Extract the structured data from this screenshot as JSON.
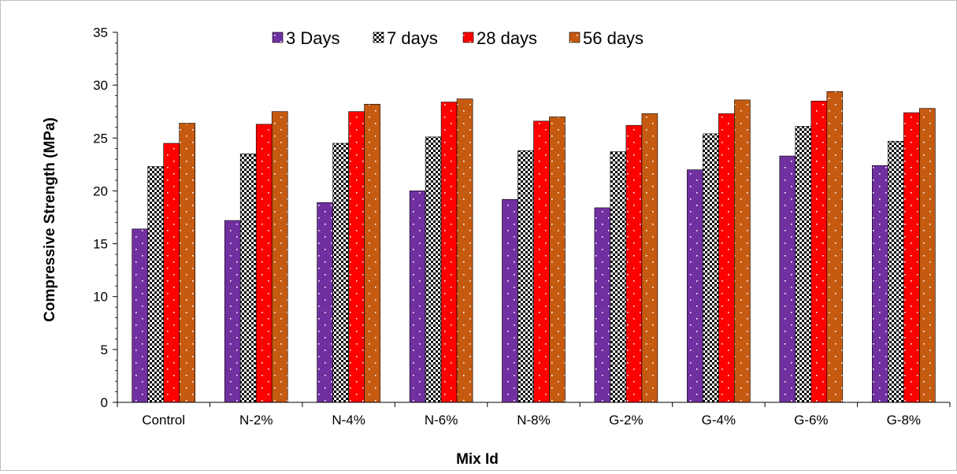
{
  "chart_data": {
    "type": "bar",
    "title": "",
    "xlabel": "Mix Id",
    "ylabel": "Compressive Strength (MPa)",
    "ylim": [
      0,
      35
    ],
    "ytick_step": 5,
    "grid": false,
    "legend_position": "top",
    "categories": [
      "Control",
      "N-2%",
      "N-4%",
      "N-6%",
      "N-8%",
      "G-2%",
      "G-4%",
      "G-6%",
      "G-8%"
    ],
    "series": [
      {
        "name": "3 Days",
        "color": "#7030a0",
        "pattern": "white-dots",
        "values": [
          16.4,
          17.2,
          18.9,
          20.0,
          19.2,
          18.4,
          22.0,
          23.3,
          22.4
        ]
      },
      {
        "name": "7 days",
        "color": "#000000",
        "pattern": "checker",
        "values": [
          22.3,
          23.5,
          24.5,
          25.1,
          23.8,
          23.7,
          25.4,
          26.1,
          24.7
        ]
      },
      {
        "name": "28 days",
        "color": "#ff0000",
        "pattern": "white-dots",
        "values": [
          24.5,
          26.3,
          27.5,
          28.4,
          26.6,
          26.2,
          27.3,
          28.5,
          27.4
        ]
      },
      {
        "name": "56 days",
        "color": "#c55a11",
        "pattern": "white-dots",
        "values": [
          26.4,
          27.5,
          28.2,
          28.7,
          27.0,
          27.3,
          28.6,
          29.4,
          27.8
        ]
      }
    ]
  }
}
